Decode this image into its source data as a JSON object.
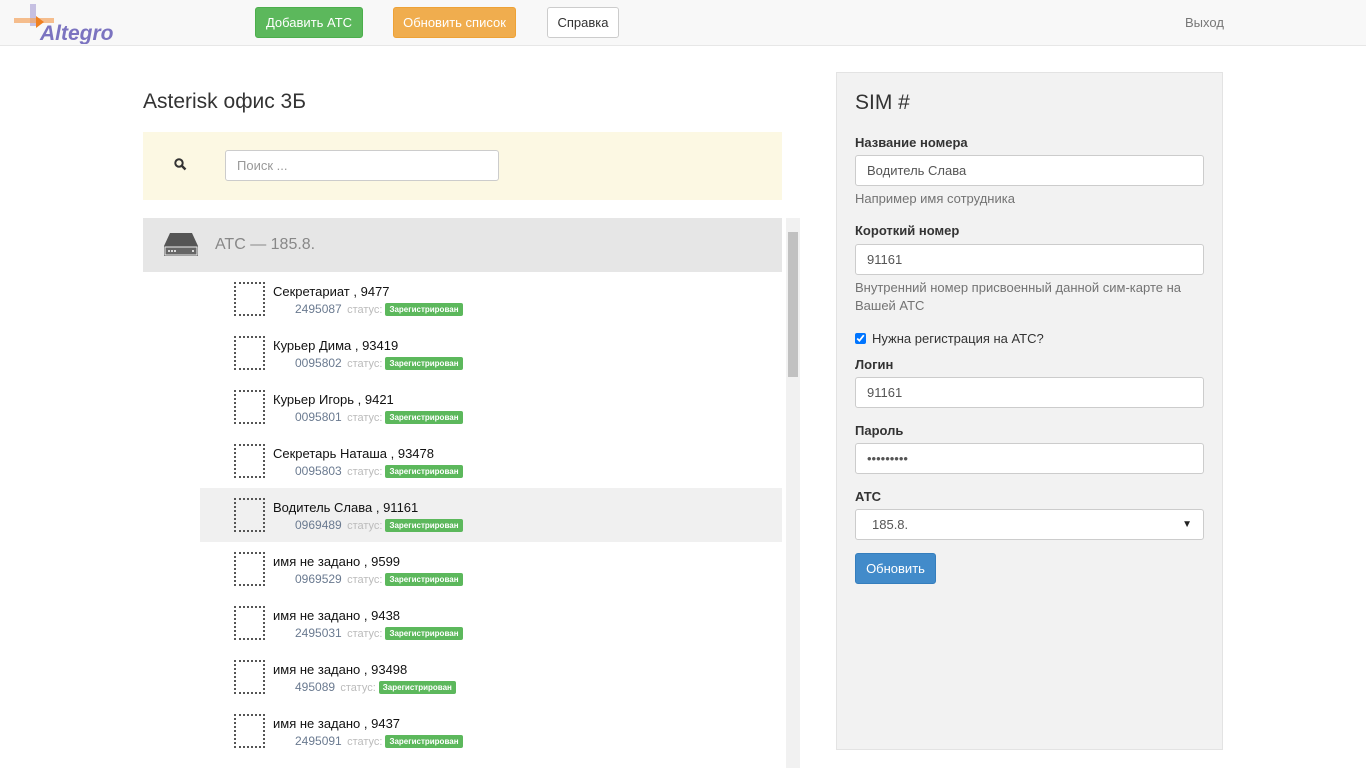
{
  "nav": {
    "logo": "Altegro",
    "add": "Добавить АТС",
    "refresh": "Обновить список",
    "help": "Справка",
    "logout": "Выход"
  },
  "main": {
    "title": "Asterisk офис 3Б",
    "search_placeholder": "Поиск ...",
    "group": "АТС — 185.8.",
    "status_label": "статус:",
    "items": [
      {
        "name": "Секретариат , 9477",
        "num": "2495087",
        "status": "Зарегистрирован"
      },
      {
        "name": "Курьер Дима , 93419",
        "num": "0095802",
        "status": "Зарегистрирован"
      },
      {
        "name": "Курьер Игорь , 9421",
        "num": "0095801",
        "status": "Зарегистрирован"
      },
      {
        "name": "Секретарь Наташа , 93478",
        "num": "0095803",
        "status": "Зарегистрирован"
      },
      {
        "name": "Водитель Слава , 91161",
        "num": "0969489",
        "status": "Зарегистрирован",
        "selected": true
      },
      {
        "name": "имя не задано , 9599",
        "num": "0969529",
        "status": "Зарегистрирован"
      },
      {
        "name": "имя не задано , 9438",
        "num": "2495031",
        "status": "Зарегистрирован"
      },
      {
        "name": "имя не задано , 93498",
        "num": "495089",
        "status": "Зарегистрирован"
      },
      {
        "name": "имя не задано , 9437",
        "num": "2495091",
        "status": "Зарегистрирован"
      }
    ]
  },
  "form": {
    "title": "SIM #",
    "name_label": "Название номера",
    "name_value": "Водитель Слава",
    "name_help": "Например имя сотрудника",
    "short_label": "Короткий номер",
    "short_value": "91161",
    "short_help": "Внутренний номер присвоенный данной сим-карте на Вашей АТС",
    "reg_label": "Нужна регистрация на АТС?",
    "reg_checked": true,
    "login_label": "Логин",
    "login_value": "91161",
    "pass_label": "Пароль",
    "pass_value": "•••••••••",
    "ats_label": "АТС",
    "ats_value": "185.8.",
    "submit": "Обновить"
  }
}
